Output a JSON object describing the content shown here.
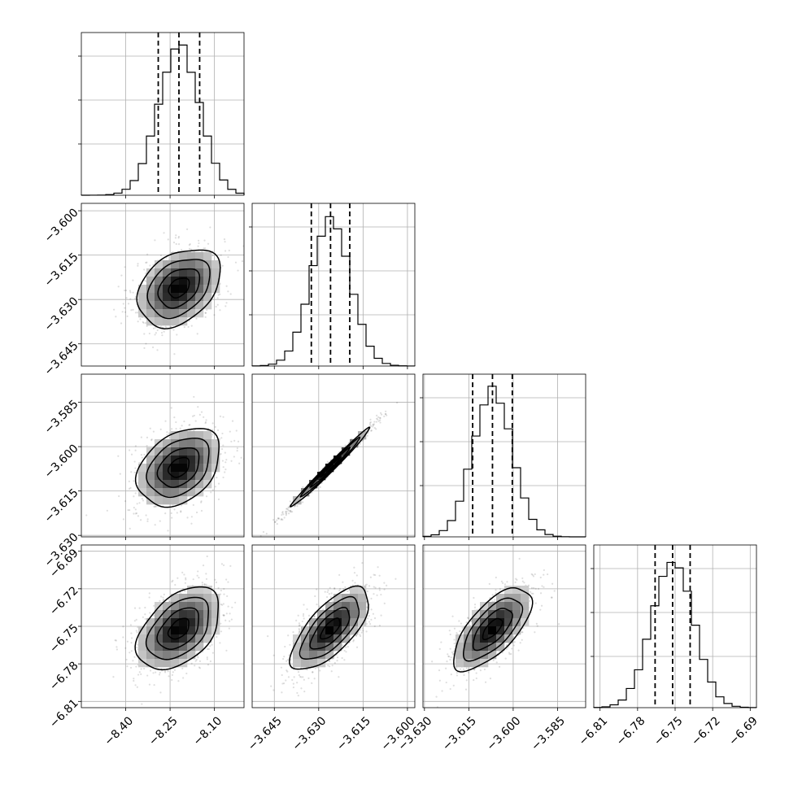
{
  "chart_data": {
    "type": "corner",
    "dimensions": [
      {
        "id": "p0",
        "range": [
          -8.55,
          -8.0
        ],
        "ticks": [
          -8.4,
          -8.25,
          -8.1
        ],
        "tick_labels": [
          "−8.40",
          "−8.25",
          "−8.10"
        ],
        "mean": -8.22,
        "sigma": 0.07,
        "quantiles": [
          -8.29,
          -8.22,
          -8.15
        ]
      },
      {
        "id": "p1",
        "range": [
          -3.6525,
          -3.5975
        ],
        "ticks": [
          -3.645,
          -3.63,
          -3.615,
          -3.6
        ],
        "tick_labels": [
          "−3.645",
          "−3.630",
          "−3.615",
          "−3.600"
        ],
        "mean": -3.626,
        "sigma": 0.0066,
        "quantiles": [
          -3.6325,
          -3.626,
          -3.6195
        ]
      },
      {
        "id": "p2",
        "range": [
          -3.6305,
          -3.5755
        ],
        "ticks": [
          -3.63,
          -3.615,
          -3.6,
          -3.585
        ],
        "tick_labels": [
          "−3.630",
          "−3.615",
          "−3.600",
          "−3.585"
        ],
        "mean": -3.607,
        "sigma": 0.0066,
        "quantiles": [
          -3.6137,
          -3.607,
          -3.6003
        ]
      },
      {
        "id": "p3",
        "range": [
          -6.815,
          -6.685
        ],
        "ticks": [
          -6.81,
          -6.78,
          -6.75,
          -6.72,
          -6.69
        ],
        "tick_labels": [
          "−6.81",
          "−6.78",
          "−6.75",
          "−6.72",
          "−6.69"
        ],
        "mean": -6.752,
        "sigma": 0.0165,
        "quantiles": [
          -6.766,
          -6.752,
          -6.738
        ]
      }
    ],
    "correlations": [
      {
        "i": 1,
        "j": 0,
        "rho": 0.35
      },
      {
        "i": 2,
        "j": 0,
        "rho": 0.35
      },
      {
        "i": 2,
        "j": 1,
        "rho": 0.99
      },
      {
        "i": 3,
        "j": 0,
        "rho": 0.45
      },
      {
        "i": 3,
        "j": 1,
        "rho": 0.7
      },
      {
        "i": 3,
        "j": 2,
        "rho": 0.68
      }
    ],
    "histogram_bins": 20,
    "histogram_style": "step",
    "quantile_lines": "dashed",
    "contour_levels": 3,
    "grid": true,
    "xlabels": [
      "",
      "",
      "",
      ""
    ],
    "ylabels": [
      "",
      "",
      "",
      ""
    ]
  }
}
